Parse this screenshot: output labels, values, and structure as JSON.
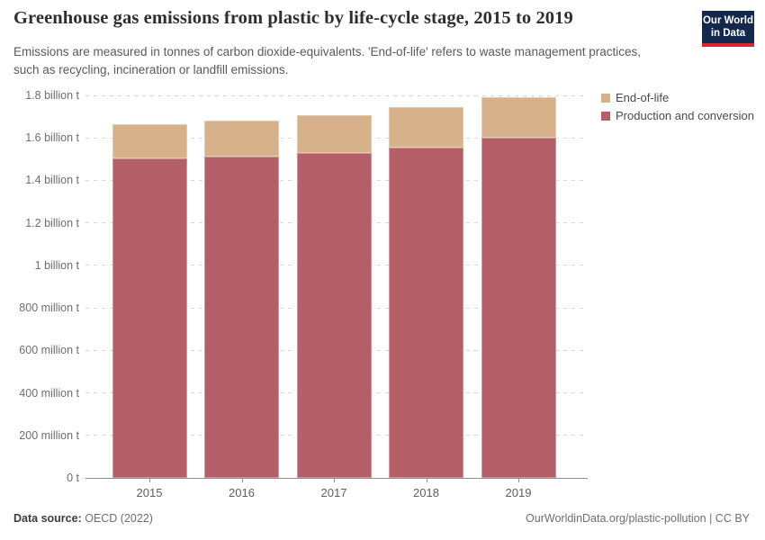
{
  "header": {
    "title": "Greenhouse gas emissions from plastic by life-cycle stage, 2015 to 2019",
    "subtitle": "Emissions are measured in tonnes of carbon dioxide-equivalents. 'End-of-life' refers to waste management practices, such as recycling, incineration or landfill emissions.",
    "logo": {
      "line1": "Our World",
      "line2": "in Data",
      "bg_color": "#12294D",
      "accent_color": "#D8262C"
    }
  },
  "footer": {
    "source_label": "Data source:",
    "source_value": "OECD (2022)",
    "credit": "OurWorldinData.org/plastic-pollution | CC BY"
  },
  "chart_data": {
    "type": "bar",
    "stacked": true,
    "title": "Greenhouse gas emissions from plastic by life-cycle stage, 2015 to 2019",
    "unit": "tonnes of CO2-equivalents",
    "categories": [
      "2015",
      "2016",
      "2017",
      "2018",
      "2019"
    ],
    "series": [
      {
        "name": "End-of-life",
        "color": "#D6B189",
        "stack_index": 1,
        "values": [
          160000000,
          170000000,
          175000000,
          190000000,
          190000000
        ]
      },
      {
        "name": "Production and conversion",
        "color": "#B45F67",
        "stack_index": 0,
        "values": [
          1505000000,
          1510000000,
          1530000000,
          1555000000,
          1600000000
        ]
      }
    ],
    "totals": [
      1665000000,
      1680000000,
      1705000000,
      1745000000,
      1790000000
    ],
    "ylim": [
      0,
      1800000000
    ],
    "yticks": [
      {
        "value": 0,
        "label": "0 t"
      },
      {
        "value": 200000000,
        "label": "200 million t"
      },
      {
        "value": 400000000,
        "label": "400 million t"
      },
      {
        "value": 600000000,
        "label": "600 million t"
      },
      {
        "value": 800000000,
        "label": "800 million t"
      },
      {
        "value": 1000000000,
        "label": "1 billion t"
      },
      {
        "value": 1200000000,
        "label": "1.2 billion t"
      },
      {
        "value": 1400000000,
        "label": "1.4 billion t"
      },
      {
        "value": 1600000000,
        "label": "1.6 billion t"
      },
      {
        "value": 1800000000,
        "label": "1.8 billion t"
      }
    ],
    "grid": "horizontal-dashed",
    "legend_position": "top-right"
  }
}
